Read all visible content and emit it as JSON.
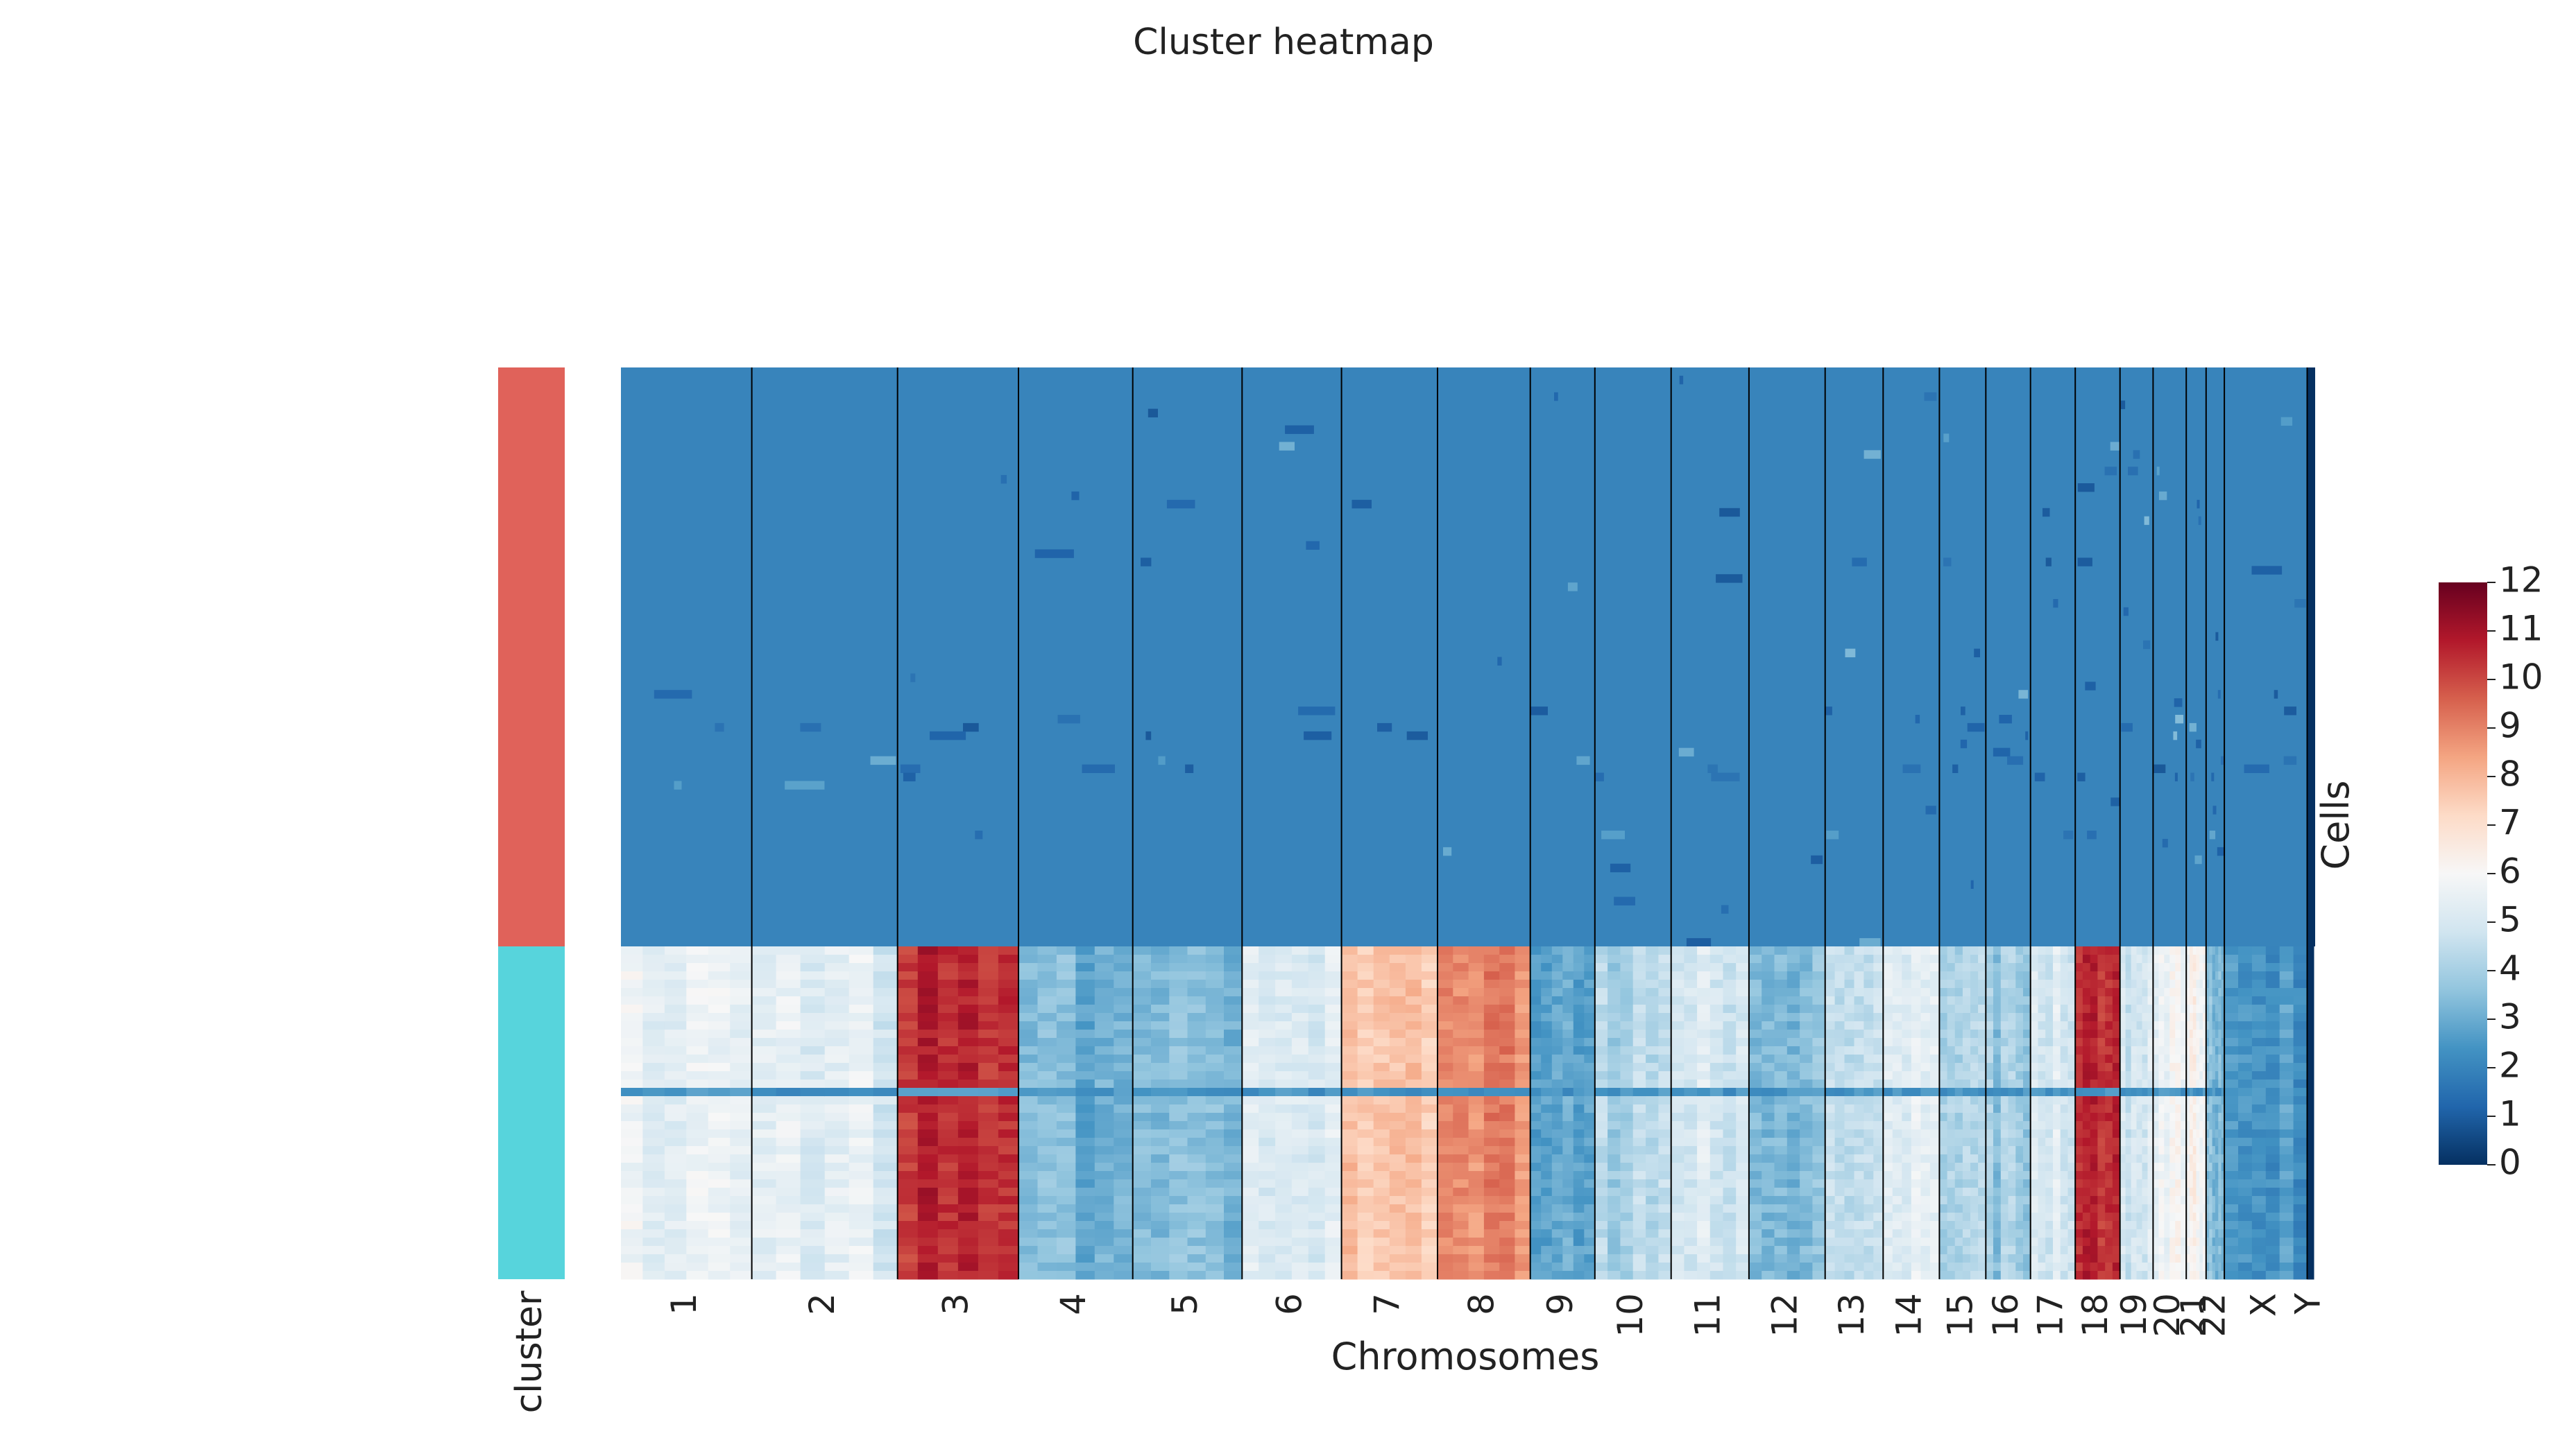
{
  "chart_data": {
    "type": "heatmap",
    "title": "Cluster heatmap",
    "xlabel": "Chromosomes",
    "ylabel": "Cells",
    "cluster_label": "cluster",
    "grid": false,
    "legend_placement": "right",
    "colormap": "RdBu_r",
    "colorbar": {
      "min": 0,
      "max": 12,
      "ticks": [
        0,
        1,
        2,
        3,
        4,
        5,
        6,
        7,
        8,
        9,
        10,
        11,
        12
      ]
    },
    "clusters": [
      {
        "color": "#E0625A",
        "cell_fraction": 0.635,
        "baseline_copy_number": 2
      },
      {
        "color": "#57D4DC",
        "cell_fraction": 0.365
      }
    ],
    "chromosomes": [
      "1",
      "2",
      "3",
      "4",
      "5",
      "6",
      "7",
      "8",
      "9",
      "10",
      "11",
      "12",
      "13",
      "14",
      "15",
      "16",
      "17",
      "18",
      "19",
      "20",
      "21",
      "22",
      "X",
      "Y"
    ],
    "cluster2_chromosome_copy_number": [
      5.5,
      5.2,
      10.5,
      3.2,
      3.3,
      5.2,
      7.5,
      8.8,
      2.9,
      4.2,
      5.0,
      3.6,
      4.3,
      5.2,
      4.2,
      3.8,
      5.0,
      10.5,
      5.0,
      5.8,
      6.0,
      3.3,
      2.5,
      0.0
    ],
    "chromosome_relative_lengths": [
      7.9,
      8.8,
      7.3,
      6.9,
      6.6,
      6.0,
      5.8,
      5.6,
      3.9,
      4.6,
      4.7,
      4.6,
      3.5,
      3.4,
      2.8,
      2.7,
      2.7,
      2.7,
      2.0,
      2.0,
      1.2,
      1.1,
      5.0,
      0.4
    ]
  }
}
